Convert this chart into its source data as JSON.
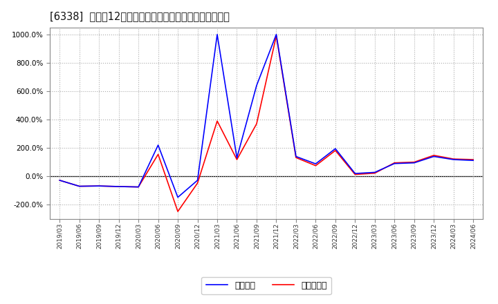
{
  "title": "[6338]  利益だ12か月移動合計の対前年同期増減率の推移",
  "background_color": "#ffffff",
  "plot_bg_color": "#ffffff",
  "grid_color": "#aaaaaa",
  "ylim": [
    -300,
    1050
  ],
  "ytick_values": [
    -200,
    0,
    200,
    400,
    600,
    800,
    1000
  ],
  "legend_labels": [
    "経常利益",
    "当期純利益"
  ],
  "line_colors": [
    "#0000ff",
    "#ff0000"
  ],
  "x_labels": [
    "2019/03",
    "2019/06",
    "2019/09",
    "2019/12",
    "2020/03",
    "2020/06",
    "2020/09",
    "2020/12",
    "2021/03",
    "2021/06",
    "2021/09",
    "2021/12",
    "2022/03",
    "2022/06",
    "2022/09",
    "2022/12",
    "2023/03",
    "2023/06",
    "2023/09",
    "2023/12",
    "2024/03",
    "2024/06"
  ],
  "blue_y": [
    -28,
    -70,
    -68,
    -72,
    -75,
    220,
    -148,
    -28,
    1000,
    130,
    640,
    1000,
    140,
    88,
    195,
    20,
    28,
    90,
    95,
    140,
    118,
    112
  ],
  "red_y": [
    -28,
    -70,
    -68,
    -72,
    -75,
    155,
    -248,
    -48,
    390,
    118,
    370,
    990,
    132,
    75,
    182,
    13,
    22,
    95,
    100,
    148,
    122,
    118
  ]
}
